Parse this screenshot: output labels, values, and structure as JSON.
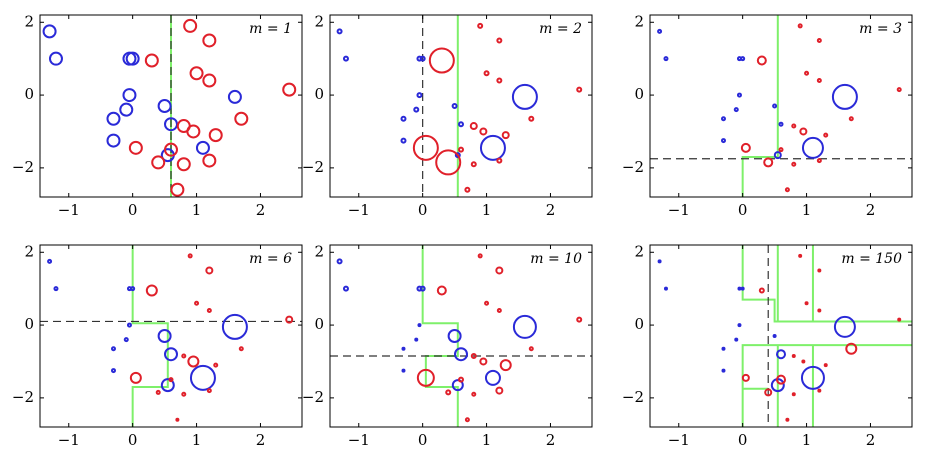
{
  "chart_data": [
    {
      "type": "scatter",
      "label": "m = 1",
      "xlim": [
        -1.45,
        2.65
      ],
      "ylim": [
        -2.8,
        2.2
      ],
      "xticks": [
        {
          "value": -1,
          "label": "−1"
        },
        0,
        1,
        2
      ],
      "yticks": [
        {
          "value": -2,
          "label": "−2"
        },
        0,
        2
      ],
      "split": {
        "axis": "x",
        "value": 0.6
      },
      "boundaries": [
        {
          "x": [
            0.6,
            0.6
          ],
          "y": [
            2.2,
            -2.8
          ]
        }
      ],
      "series": [
        {
          "color": "#2a2ad8",
          "x": [
            -1.3,
            -1.2,
            -0.05,
            0,
            -0.05,
            -0.1,
            -0.3,
            -0.3,
            0.5,
            0.6,
            1.1,
            1.6,
            0.55
          ],
          "y": [
            1.75,
            1.0,
            1.0,
            1.0,
            0,
            -0.4,
            -0.65,
            -1.25,
            -0.3,
            -0.8,
            -1.45,
            -0.05,
            -1.65
          ],
          "sizes": [
            6,
            6,
            6,
            6,
            6,
            6,
            6,
            6,
            6,
            6,
            6,
            6,
            6
          ]
        },
        {
          "color": "#e0202a",
          "x": [
            0.9,
            1.2,
            0.3,
            1.0,
            1.2,
            2.45,
            1.7,
            0.8,
            0.95,
            1.3,
            0.05,
            0.6,
            0.4,
            0.8,
            1.2,
            0.7
          ],
          "y": [
            1.9,
            1.5,
            0.95,
            0.6,
            0.4,
            0.15,
            -0.65,
            -0.85,
            -1.0,
            -1.1,
            -1.45,
            -1.5,
            -1.85,
            -1.9,
            -1.8,
            -2.6
          ],
          "sizes": [
            6,
            6,
            6,
            6,
            6,
            6,
            6,
            6,
            6,
            6,
            6,
            6,
            6,
            6,
            6,
            6
          ]
        }
      ]
    },
    {
      "type": "scatter",
      "label": "m = 2",
      "xlim": [
        -1.45,
        2.65
      ],
      "ylim": [
        -2.8,
        2.2
      ],
      "xticks": [
        {
          "value": -1,
          "label": "−1"
        },
        0,
        1,
        2
      ],
      "yticks": [
        {
          "value": -2,
          "label": "−2"
        },
        0,
        2
      ],
      "split": {
        "axis": "x",
        "value": 0
      },
      "boundaries": [
        {
          "x": [
            0.55,
            0.55
          ],
          "y": [
            2.2,
            -2.8
          ]
        }
      ],
      "series": [
        {
          "color": "#2a2ad8",
          "x": [
            -1.3,
            -1.2,
            -0.05,
            0,
            -0.05,
            -0.1,
            -0.3,
            -0.3,
            0.5,
            0.6,
            1.1,
            1.6,
            0.55
          ],
          "y": [
            1.75,
            1.0,
            1.0,
            1.0,
            0,
            -0.4,
            -0.65,
            -1.25,
            -0.3,
            -0.8,
            -1.45,
            -0.05,
            -1.65
          ],
          "sizes": [
            2,
            2,
            2,
            2,
            2,
            2,
            2,
            2,
            2,
            2,
            12,
            12,
            2
          ]
        },
        {
          "color": "#e0202a",
          "x": [
            0.9,
            1.2,
            0.3,
            1.0,
            1.2,
            2.45,
            1.7,
            0.8,
            0.95,
            1.3,
            0.05,
            0.6,
            0.4,
            0.8,
            1.2,
            0.7
          ],
          "y": [
            1.9,
            1.5,
            0.95,
            0.6,
            0.4,
            0.15,
            -0.65,
            -0.85,
            -1.0,
            -1.1,
            -1.45,
            -1.5,
            -1.85,
            -1.9,
            -1.8,
            -2.6
          ],
          "sizes": [
            2,
            2,
            12,
            2,
            2,
            2,
            2,
            3,
            3,
            3,
            12,
            2,
            12,
            2,
            2,
            2
          ]
        }
      ]
    },
    {
      "type": "scatter",
      "label": "m = 3",
      "xlim": [
        -1.45,
        2.65
      ],
      "ylim": [
        -2.8,
        2.2
      ],
      "xticks": [
        {
          "value": -1,
          "label": "−1"
        },
        0,
        1,
        2
      ],
      "yticks": [
        {
          "value": -2,
          "label": "−2"
        },
        0,
        2
      ],
      "split": {
        "axis": "y",
        "value": -1.75
      },
      "boundaries": [
        {
          "x": [
            0.55,
            0.55,
            0,
            0
          ],
          "y": [
            2.2,
            -1.7,
            -1.7,
            -2.8
          ]
        }
      ],
      "series": [
        {
          "color": "#2a2ad8",
          "x": [
            -1.3,
            -1.2,
            -0.05,
            0,
            -0.05,
            -0.1,
            -0.3,
            -0.3,
            0.5,
            0.6,
            1.1,
            1.6,
            0.55
          ],
          "y": [
            1.75,
            1.0,
            1.0,
            1.0,
            0,
            -0.4,
            -0.65,
            -1.25,
            -0.3,
            -0.8,
            -1.45,
            -0.05,
            -1.65
          ],
          "sizes": [
            1.5,
            1.5,
            1.5,
            1.5,
            1.5,
            1.5,
            1.5,
            1.5,
            1.5,
            1.5,
            10,
            12,
            3
          ]
        },
        {
          "color": "#e0202a",
          "x": [
            0.9,
            1.2,
            0.3,
            1.0,
            1.2,
            2.45,
            1.7,
            0.8,
            0.95,
            1.3,
            0.05,
            0.6,
            0.4,
            0.8,
            1.2,
            0.7
          ],
          "y": [
            1.9,
            1.5,
            0.95,
            0.6,
            0.4,
            0.15,
            -0.65,
            -0.85,
            -1.0,
            -1.1,
            -1.45,
            -1.5,
            -1.85,
            -1.9,
            -1.8,
            -2.6
          ],
          "sizes": [
            1.5,
            1.5,
            4,
            1.5,
            1.5,
            1.5,
            1.5,
            1.5,
            3,
            1.5,
            4,
            1.5,
            4,
            1.5,
            1.5,
            1.5
          ]
        }
      ]
    },
    {
      "type": "scatter",
      "label": "m = 6",
      "xlim": [
        -1.45,
        2.65
      ],
      "ylim": [
        -2.8,
        2.2
      ],
      "xticks": [
        {
          "value": -1,
          "label": "−1"
        },
        0,
        1,
        2
      ],
      "yticks": [
        {
          "value": -2,
          "label": "−2"
        },
        0,
        2
      ],
      "split": {
        "axis": "y",
        "value": 0.1
      },
      "boundaries": [
        {
          "x": [
            0,
            0,
            0.55,
            0.55,
            0,
            0
          ],
          "y": [
            2.2,
            0.05,
            0.05,
            -1.7,
            -1.7,
            -2.8
          ]
        }
      ],
      "series": [
        {
          "color": "#2a2ad8",
          "x": [
            -1.3,
            -1.2,
            -0.05,
            0,
            -0.05,
            -0.1,
            -0.3,
            -0.3,
            0.5,
            0.6,
            1.1,
            1.6,
            0.55
          ],
          "y": [
            1.75,
            1.0,
            1.0,
            1.0,
            0,
            -0.4,
            -0.65,
            -1.25,
            -0.3,
            -0.8,
            -1.45,
            -0.05,
            -1.65
          ],
          "sizes": [
            1.5,
            1.5,
            1.5,
            1.5,
            1.5,
            1.5,
            1.5,
            1.5,
            6,
            6,
            12,
            12,
            6
          ]
        },
        {
          "color": "#e0202a",
          "x": [
            0.9,
            1.2,
            0.3,
            1.0,
            1.2,
            2.45,
            1.7,
            0.8,
            0.95,
            1.3,
            0.05,
            0.6,
            0.4,
            0.8,
            1.2,
            0.7
          ],
          "y": [
            1.9,
            1.5,
            0.95,
            0.6,
            0.4,
            0.15,
            -0.65,
            -0.85,
            -1.0,
            -1.1,
            -1.45,
            -1.5,
            -1.85,
            -1.9,
            -1.8,
            -2.6
          ],
          "sizes": [
            1.5,
            3,
            5,
            1.5,
            1.5,
            3,
            1.5,
            1.5,
            5,
            1.5,
            5,
            1.5,
            1.5,
            1.5,
            1.5,
            1
          ]
        }
      ]
    },
    {
      "type": "scatter",
      "label": "m = 10",
      "xlim": [
        -1.45,
        2.65
      ],
      "ylim": [
        -2.8,
        2.2
      ],
      "xticks": [
        {
          "value": -1,
          "label": "−1"
        },
        0,
        1,
        2
      ],
      "yticks": [
        {
          "value": -2,
          "label": "−2"
        },
        0,
        2
      ],
      "split": {
        "axis": "y",
        "value": -0.85
      },
      "boundaries": [
        {
          "x": [
            0,
            0,
            0.55,
            0.55,
            0.05,
            0.05,
            0.55,
            0.55
          ],
          "y": [
            2.2,
            0.05,
            0.05,
            -0.85,
            -0.85,
            -1.7,
            -1.7,
            -2.8
          ]
        }
      ],
      "series": [
        {
          "color": "#2a2ad8",
          "x": [
            -1.3,
            -1.2,
            -0.05,
            0,
            -0.05,
            -0.1,
            -0.3,
            -0.3,
            0.5,
            0.6,
            1.1,
            1.6,
            0.55
          ],
          "y": [
            1.75,
            1.0,
            1.0,
            1.0,
            0,
            -0.4,
            -0.65,
            -1.25,
            -0.3,
            -0.8,
            -1.45,
            -0.05,
            -1.65
          ],
          "sizes": [
            2,
            2,
            2,
            2,
            1,
            1,
            1,
            1,
            6,
            6,
            7,
            11,
            5
          ]
        },
        {
          "color": "#e0202a",
          "x": [
            0.9,
            1.2,
            0.3,
            1.0,
            1.2,
            2.45,
            1.7,
            0.8,
            0.95,
            1.3,
            0.05,
            0.6,
            0.4,
            0.8,
            1.2,
            0.7
          ],
          "y": [
            1.9,
            1.5,
            0.95,
            0.6,
            0.4,
            0.15,
            -0.65,
            -0.85,
            -1.0,
            -1.1,
            -1.45,
            -1.5,
            -1.85,
            -1.9,
            -1.8,
            -2.6
          ],
          "sizes": [
            1.5,
            3,
            4,
            1.5,
            1.5,
            2,
            1.5,
            2,
            3,
            5,
            8,
            2,
            2,
            1.5,
            3,
            1.5
          ]
        }
      ]
    },
    {
      "type": "scatter",
      "label": "m = 150",
      "xlim": [
        -1.45,
        2.65
      ],
      "ylim": [
        -2.8,
        2.2
      ],
      "xticks": [
        {
          "value": -1,
          "label": "−1"
        },
        0,
        1,
        2
      ],
      "yticks": [
        {
          "value": -2,
          "label": "−2"
        },
        0,
        2
      ],
      "split": {
        "axis": "x",
        "value": 0.4
      },
      "boundaries": [
        {
          "x": [
            0,
            0,
            0.5,
            0.5,
            1.1,
            1.1
          ],
          "y": [
            2.2,
            0.7,
            0.7,
            0.1,
            0.1,
            2.2
          ]
        },
        {
          "x": [
            0.55,
            0.55
          ],
          "y": [
            2.2,
            0.1
          ]
        },
        {
          "x": [
            1.1,
            2.65
          ],
          "y": [
            0.1,
            0.1
          ]
        },
        {
          "x": [
            0,
            0,
            2.65
          ],
          "y": [
            -2.8,
            -0.55,
            -0.55
          ]
        },
        {
          "x": [
            0.55,
            0.55
          ],
          "y": [
            -2.8,
            -0.55
          ]
        },
        {
          "x": [
            1.1,
            1.1
          ],
          "y": [
            -2.8,
            -0.55
          ]
        },
        {
          "x": [
            0,
            0.4
          ],
          "y": [
            -1.75,
            -1.75
          ]
        }
      ],
      "series": [
        {
          "color": "#2a2ad8",
          "x": [
            -1.3,
            -1.2,
            -0.05,
            0,
            -0.05,
            -0.1,
            -0.3,
            -0.3,
            0.5,
            0.6,
            1.1,
            1.6,
            0.55
          ],
          "y": [
            1.75,
            1.0,
            1.0,
            1.0,
            0,
            -0.4,
            -0.65,
            -1.25,
            -0.3,
            -0.8,
            -1.45,
            -0.05,
            -1.65
          ],
          "sizes": [
            1,
            1,
            1,
            1,
            1,
            1,
            1,
            1,
            1,
            4,
            11,
            10,
            6
          ]
        },
        {
          "color": "#e0202a",
          "x": [
            0.9,
            1.2,
            0.3,
            1.0,
            1.2,
            2.45,
            1.7,
            0.8,
            0.95,
            1.3,
            0.05,
            0.6,
            0.4,
            0.8,
            1.2,
            0.7
          ],
          "y": [
            1.9,
            1.5,
            0.95,
            0.6,
            0.4,
            0.15,
            -0.65,
            -0.85,
            -1.0,
            -1.1,
            -1.45,
            -1.5,
            -1.85,
            -1.9,
            -1.8,
            -2.6
          ],
          "sizes": [
            1,
            1,
            2,
            1,
            1,
            1,
            5,
            1,
            1,
            1,
            3,
            4,
            3,
            1,
            1,
            1
          ]
        }
      ]
    }
  ]
}
